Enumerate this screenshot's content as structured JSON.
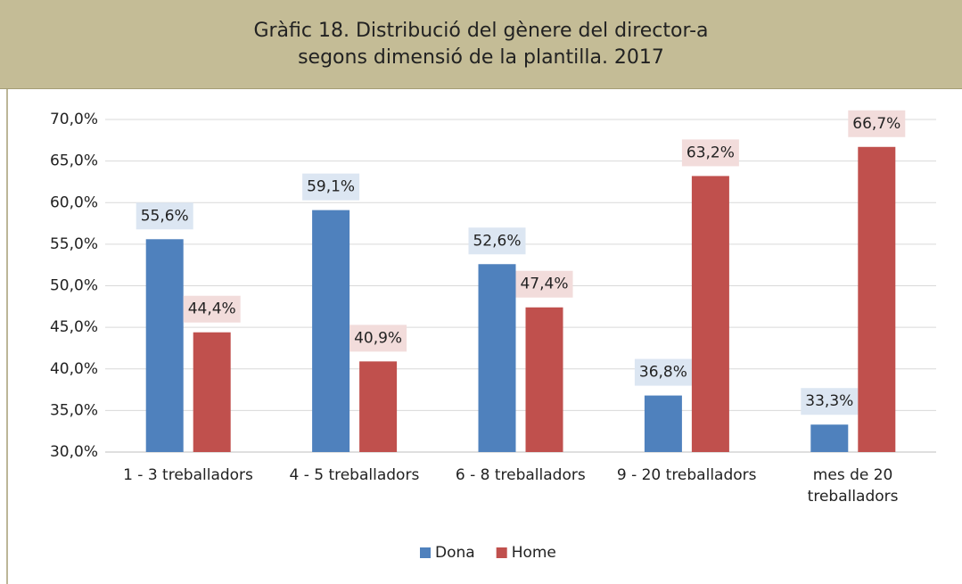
{
  "chart_data": {
    "type": "bar",
    "title": "Gràfic 18. Distribució del gènere del director-a\nsegons dimensió de la plantilla. 2017",
    "categories": [
      "1 - 3 treballadors",
      "4 - 5 treballadors",
      "6 - 8 treballadors",
      "9 - 20 treballadors",
      "mes de 20\ntreballadors"
    ],
    "series": [
      {
        "name": "Dona",
        "color": "#4f81bd",
        "label_fill": "#dce6f2",
        "values": [
          55.6,
          59.1,
          52.6,
          36.8,
          33.3
        ],
        "value_labels": [
          "55,6%",
          "59,1%",
          "52,6%",
          "36,8%",
          "33,3%"
        ]
      },
      {
        "name": "Home",
        "color": "#c0504d",
        "label_fill": "#f2dcdb",
        "values": [
          44.4,
          40.9,
          47.4,
          63.2,
          66.7
        ],
        "value_labels": [
          "44,4%",
          "40,9%",
          "47,4%",
          "63,2%",
          "66,7%"
        ]
      }
    ],
    "ylim": [
      30,
      70
    ],
    "yticks": [
      {
        "value": 30,
        "label": "30,0%"
      },
      {
        "value": 35,
        "label": "35,0%"
      },
      {
        "value": 40,
        "label": "40,0%"
      },
      {
        "value": 45,
        "label": "45,0%"
      },
      {
        "value": 50,
        "label": "50,0%"
      },
      {
        "value": 55,
        "label": "55,0%"
      },
      {
        "value": 60,
        "label": "60,0%"
      },
      {
        "value": 65,
        "label": "65,0%"
      },
      {
        "value": 70,
        "label": "70,0%"
      }
    ],
    "grid": true,
    "legend": "bottom"
  }
}
